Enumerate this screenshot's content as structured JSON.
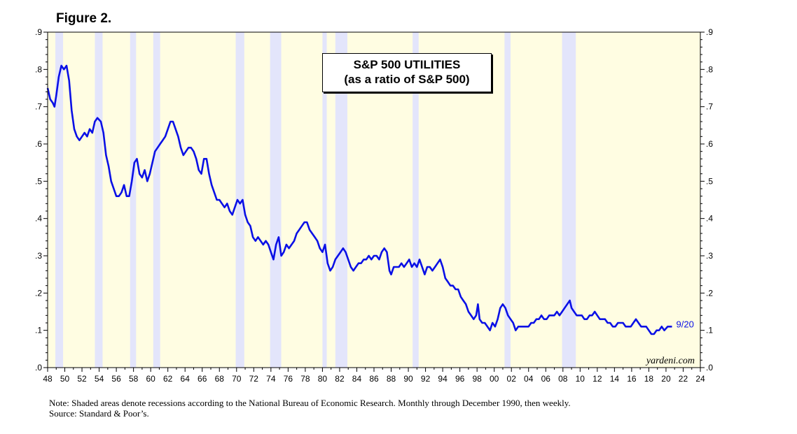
{
  "figure_label": "Figure 2.",
  "notes": {
    "line1": "Note: Shaded areas denote recessions according to the National Bureau of Economic Research. Monthly through December 1990, then weekly.",
    "line2": "Source: Standard & Poor’s."
  },
  "colors": {
    "plot_background": "#fffde2",
    "recession_shade": "#e3e5fb",
    "series_line": "#0a10e6",
    "axis": "#000000"
  },
  "chart_data": {
    "type": "line",
    "title_line1": "S&P 500 UTILITIES",
    "title_line2": "(as a ratio of S&P 500)",
    "end_label": "9/20",
    "watermark": "yardeni.com",
    "xlim": [
      1948,
      2024
    ],
    "ylim": [
      0,
      0.9
    ],
    "ytick_values": [
      0,
      0.1,
      0.2,
      0.3,
      0.4,
      0.5,
      0.6,
      0.7,
      0.8,
      0.9
    ],
    "ytick_labels": [
      ".0",
      ".1",
      ".2",
      ".3",
      ".4",
      ".5",
      ".6",
      ".7",
      ".8",
      ".9"
    ],
    "xtick_values": [
      1948,
      1950,
      1952,
      1954,
      1956,
      1958,
      1960,
      1962,
      1964,
      1966,
      1968,
      1970,
      1972,
      1974,
      1976,
      1978,
      1980,
      1982,
      1984,
      1986,
      1988,
      1990,
      1992,
      1994,
      1996,
      1998,
      2000,
      2002,
      2004,
      2006,
      2008,
      2010,
      2012,
      2014,
      2016,
      2018,
      2020,
      2022,
      2024
    ],
    "xtick_labels": [
      "48",
      "50",
      "52",
      "54",
      "56",
      "58",
      "60",
      "62",
      "64",
      "66",
      "68",
      "70",
      "72",
      "74",
      "76",
      "78",
      "80",
      "82",
      "84",
      "86",
      "88",
      "90",
      "92",
      "94",
      "96",
      "98",
      "00",
      "02",
      "04",
      "06",
      "08",
      "10",
      "12",
      "14",
      "16",
      "18",
      "20",
      "22",
      "24"
    ],
    "recessions": [
      [
        1948.9,
        1949.8
      ],
      [
        1953.5,
        1954.4
      ],
      [
        1957.6,
        1958.3
      ],
      [
        1960.3,
        1961.1
      ],
      [
        1969.9,
        1970.9
      ],
      [
        1973.9,
        1975.2
      ],
      [
        1980.0,
        1980.5
      ],
      [
        1981.5,
        1982.9
      ],
      [
        1990.5,
        1991.2
      ],
      [
        2001.2,
        2001.9
      ],
      [
        2007.9,
        2009.5
      ]
    ],
    "series": [
      {
        "name": "S&P 500 Utilities / S&P 500",
        "points": [
          [
            1948.0,
            0.75
          ],
          [
            1948.3,
            0.72
          ],
          [
            1948.6,
            0.71
          ],
          [
            1948.8,
            0.7
          ],
          [
            1949.0,
            0.73
          ],
          [
            1949.3,
            0.78
          ],
          [
            1949.6,
            0.81
          ],
          [
            1949.9,
            0.8
          ],
          [
            1950.2,
            0.81
          ],
          [
            1950.5,
            0.77
          ],
          [
            1950.8,
            0.69
          ],
          [
            1951.1,
            0.64
          ],
          [
            1951.4,
            0.62
          ],
          [
            1951.7,
            0.61
          ],
          [
            1952.0,
            0.62
          ],
          [
            1952.3,
            0.63
          ],
          [
            1952.6,
            0.62
          ],
          [
            1952.9,
            0.64
          ],
          [
            1953.2,
            0.63
          ],
          [
            1953.5,
            0.66
          ],
          [
            1953.8,
            0.67
          ],
          [
            1954.2,
            0.66
          ],
          [
            1954.5,
            0.63
          ],
          [
            1954.8,
            0.57
          ],
          [
            1955.1,
            0.54
          ],
          [
            1955.4,
            0.5
          ],
          [
            1955.7,
            0.48
          ],
          [
            1956.0,
            0.46
          ],
          [
            1956.3,
            0.46
          ],
          [
            1956.6,
            0.47
          ],
          [
            1956.9,
            0.49
          ],
          [
            1957.2,
            0.46
          ],
          [
            1957.5,
            0.46
          ],
          [
            1957.8,
            0.5
          ],
          [
            1958.1,
            0.55
          ],
          [
            1958.4,
            0.56
          ],
          [
            1958.7,
            0.52
          ],
          [
            1959.0,
            0.51
          ],
          [
            1959.3,
            0.53
          ],
          [
            1959.6,
            0.5
          ],
          [
            1959.9,
            0.52
          ],
          [
            1960.2,
            0.55
          ],
          [
            1960.5,
            0.58
          ],
          [
            1960.8,
            0.59
          ],
          [
            1961.1,
            0.6
          ],
          [
            1961.4,
            0.61
          ],
          [
            1961.7,
            0.62
          ],
          [
            1962.0,
            0.64
          ],
          [
            1962.3,
            0.66
          ],
          [
            1962.6,
            0.66
          ],
          [
            1962.9,
            0.64
          ],
          [
            1963.2,
            0.62
          ],
          [
            1963.5,
            0.59
          ],
          [
            1963.8,
            0.57
          ],
          [
            1964.1,
            0.58
          ],
          [
            1964.4,
            0.59
          ],
          [
            1964.7,
            0.59
          ],
          [
            1965.0,
            0.58
          ],
          [
            1965.3,
            0.56
          ],
          [
            1965.6,
            0.53
          ],
          [
            1965.9,
            0.52
          ],
          [
            1966.2,
            0.56
          ],
          [
            1966.5,
            0.56
          ],
          [
            1966.8,
            0.52
          ],
          [
            1967.1,
            0.49
          ],
          [
            1967.4,
            0.47
          ],
          [
            1967.7,
            0.45
          ],
          [
            1968.0,
            0.45
          ],
          [
            1968.3,
            0.44
          ],
          [
            1968.6,
            0.43
          ],
          [
            1968.9,
            0.44
          ],
          [
            1969.2,
            0.42
          ],
          [
            1969.5,
            0.41
          ],
          [
            1969.8,
            0.43
          ],
          [
            1970.1,
            0.45
          ],
          [
            1970.4,
            0.44
          ],
          [
            1970.7,
            0.45
          ],
          [
            1971.0,
            0.41
          ],
          [
            1971.3,
            0.39
          ],
          [
            1971.6,
            0.38
          ],
          [
            1971.9,
            0.35
          ],
          [
            1972.2,
            0.34
          ],
          [
            1972.5,
            0.35
          ],
          [
            1972.8,
            0.34
          ],
          [
            1973.1,
            0.33
          ],
          [
            1973.4,
            0.34
          ],
          [
            1973.7,
            0.33
          ],
          [
            1974.0,
            0.31
          ],
          [
            1974.3,
            0.29
          ],
          [
            1974.6,
            0.33
          ],
          [
            1974.9,
            0.35
          ],
          [
            1975.2,
            0.3
          ],
          [
            1975.5,
            0.31
          ],
          [
            1975.8,
            0.33
          ],
          [
            1976.1,
            0.32
          ],
          [
            1976.4,
            0.33
          ],
          [
            1976.7,
            0.34
          ],
          [
            1977.0,
            0.36
          ],
          [
            1977.3,
            0.37
          ],
          [
            1977.6,
            0.38
          ],
          [
            1977.9,
            0.39
          ],
          [
            1978.2,
            0.39
          ],
          [
            1978.5,
            0.37
          ],
          [
            1978.8,
            0.36
          ],
          [
            1979.1,
            0.35
          ],
          [
            1979.4,
            0.34
          ],
          [
            1979.7,
            0.32
          ],
          [
            1980.0,
            0.31
          ],
          [
            1980.3,
            0.33
          ],
          [
            1980.6,
            0.28
          ],
          [
            1980.9,
            0.26
          ],
          [
            1981.2,
            0.27
          ],
          [
            1981.5,
            0.29
          ],
          [
            1981.8,
            0.3
          ],
          [
            1982.1,
            0.31
          ],
          [
            1982.4,
            0.32
          ],
          [
            1982.7,
            0.31
          ],
          [
            1983.0,
            0.29
          ],
          [
            1983.3,
            0.27
          ],
          [
            1983.6,
            0.26
          ],
          [
            1983.9,
            0.27
          ],
          [
            1984.2,
            0.28
          ],
          [
            1984.5,
            0.28
          ],
          [
            1984.8,
            0.29
          ],
          [
            1985.1,
            0.29
          ],
          [
            1985.4,
            0.3
          ],
          [
            1985.7,
            0.29
          ],
          [
            1986.0,
            0.3
          ],
          [
            1986.3,
            0.3
          ],
          [
            1986.6,
            0.29
          ],
          [
            1986.9,
            0.31
          ],
          [
            1987.2,
            0.32
          ],
          [
            1987.5,
            0.31
          ],
          [
            1987.8,
            0.26
          ],
          [
            1988.0,
            0.25
          ],
          [
            1988.3,
            0.27
          ],
          [
            1988.6,
            0.27
          ],
          [
            1988.9,
            0.27
          ],
          [
            1989.2,
            0.28
          ],
          [
            1989.5,
            0.27
          ],
          [
            1989.8,
            0.28
          ],
          [
            1990.1,
            0.29
          ],
          [
            1990.4,
            0.27
          ],
          [
            1990.7,
            0.28
          ],
          [
            1991.0,
            0.27
          ],
          [
            1991.3,
            0.29
          ],
          [
            1991.6,
            0.27
          ],
          [
            1991.9,
            0.25
          ],
          [
            1992.2,
            0.27
          ],
          [
            1992.5,
            0.27
          ],
          [
            1992.8,
            0.26
          ],
          [
            1993.1,
            0.27
          ],
          [
            1993.4,
            0.28
          ],
          [
            1993.7,
            0.29
          ],
          [
            1994.0,
            0.27
          ],
          [
            1994.3,
            0.24
          ],
          [
            1994.6,
            0.23
          ],
          [
            1994.9,
            0.22
          ],
          [
            1995.2,
            0.22
          ],
          [
            1995.5,
            0.21
          ],
          [
            1995.8,
            0.21
          ],
          [
            1996.1,
            0.19
          ],
          [
            1996.4,
            0.18
          ],
          [
            1996.7,
            0.17
          ],
          [
            1997.0,
            0.15
          ],
          [
            1997.3,
            0.14
          ],
          [
            1997.6,
            0.13
          ],
          [
            1997.9,
            0.14
          ],
          [
            1998.1,
            0.17
          ],
          [
            1998.3,
            0.13
          ],
          [
            1998.6,
            0.12
          ],
          [
            1998.9,
            0.12
          ],
          [
            1999.2,
            0.11
          ],
          [
            1999.5,
            0.1
          ],
          [
            1999.8,
            0.12
          ],
          [
            2000.1,
            0.11
          ],
          [
            2000.4,
            0.13
          ],
          [
            2000.7,
            0.16
          ],
          [
            2001.0,
            0.17
          ],
          [
            2001.3,
            0.16
          ],
          [
            2001.6,
            0.14
          ],
          [
            2001.9,
            0.13
          ],
          [
            2002.2,
            0.12
          ],
          [
            2002.5,
            0.1
          ],
          [
            2002.8,
            0.11
          ],
          [
            2003.1,
            0.11
          ],
          [
            2003.4,
            0.11
          ],
          [
            2003.7,
            0.11
          ],
          [
            2004.0,
            0.11
          ],
          [
            2004.3,
            0.12
          ],
          [
            2004.6,
            0.12
          ],
          [
            2004.9,
            0.13
          ],
          [
            2005.2,
            0.13
          ],
          [
            2005.5,
            0.14
          ],
          [
            2005.8,
            0.13
          ],
          [
            2006.1,
            0.13
          ],
          [
            2006.4,
            0.14
          ],
          [
            2006.7,
            0.14
          ],
          [
            2007.0,
            0.14
          ],
          [
            2007.3,
            0.15
          ],
          [
            2007.6,
            0.14
          ],
          [
            2007.9,
            0.15
          ],
          [
            2008.2,
            0.16
          ],
          [
            2008.5,
            0.17
          ],
          [
            2008.8,
            0.18
          ],
          [
            2009.0,
            0.16
          ],
          [
            2009.3,
            0.15
          ],
          [
            2009.6,
            0.14
          ],
          [
            2009.9,
            0.14
          ],
          [
            2010.2,
            0.14
          ],
          [
            2010.5,
            0.13
          ],
          [
            2010.8,
            0.13
          ],
          [
            2011.1,
            0.14
          ],
          [
            2011.4,
            0.14
          ],
          [
            2011.7,
            0.15
          ],
          [
            2012.0,
            0.14
          ],
          [
            2012.3,
            0.13
          ],
          [
            2012.6,
            0.13
          ],
          [
            2012.9,
            0.13
          ],
          [
            2013.2,
            0.12
          ],
          [
            2013.5,
            0.12
          ],
          [
            2013.8,
            0.11
          ],
          [
            2014.1,
            0.11
          ],
          [
            2014.4,
            0.12
          ],
          [
            2014.7,
            0.12
          ],
          [
            2015.0,
            0.12
          ],
          [
            2015.3,
            0.11
          ],
          [
            2015.6,
            0.11
          ],
          [
            2015.9,
            0.11
          ],
          [
            2016.2,
            0.12
          ],
          [
            2016.5,
            0.13
          ],
          [
            2016.8,
            0.12
          ],
          [
            2017.1,
            0.11
          ],
          [
            2017.4,
            0.11
          ],
          [
            2017.7,
            0.11
          ],
          [
            2018.0,
            0.1
          ],
          [
            2018.3,
            0.09
          ],
          [
            2018.6,
            0.09
          ],
          [
            2018.9,
            0.1
          ],
          [
            2019.2,
            0.1
          ],
          [
            2019.5,
            0.11
          ],
          [
            2019.8,
            0.1
          ],
          [
            2020.2,
            0.11
          ],
          [
            2020.7,
            0.11
          ]
        ]
      }
    ]
  }
}
